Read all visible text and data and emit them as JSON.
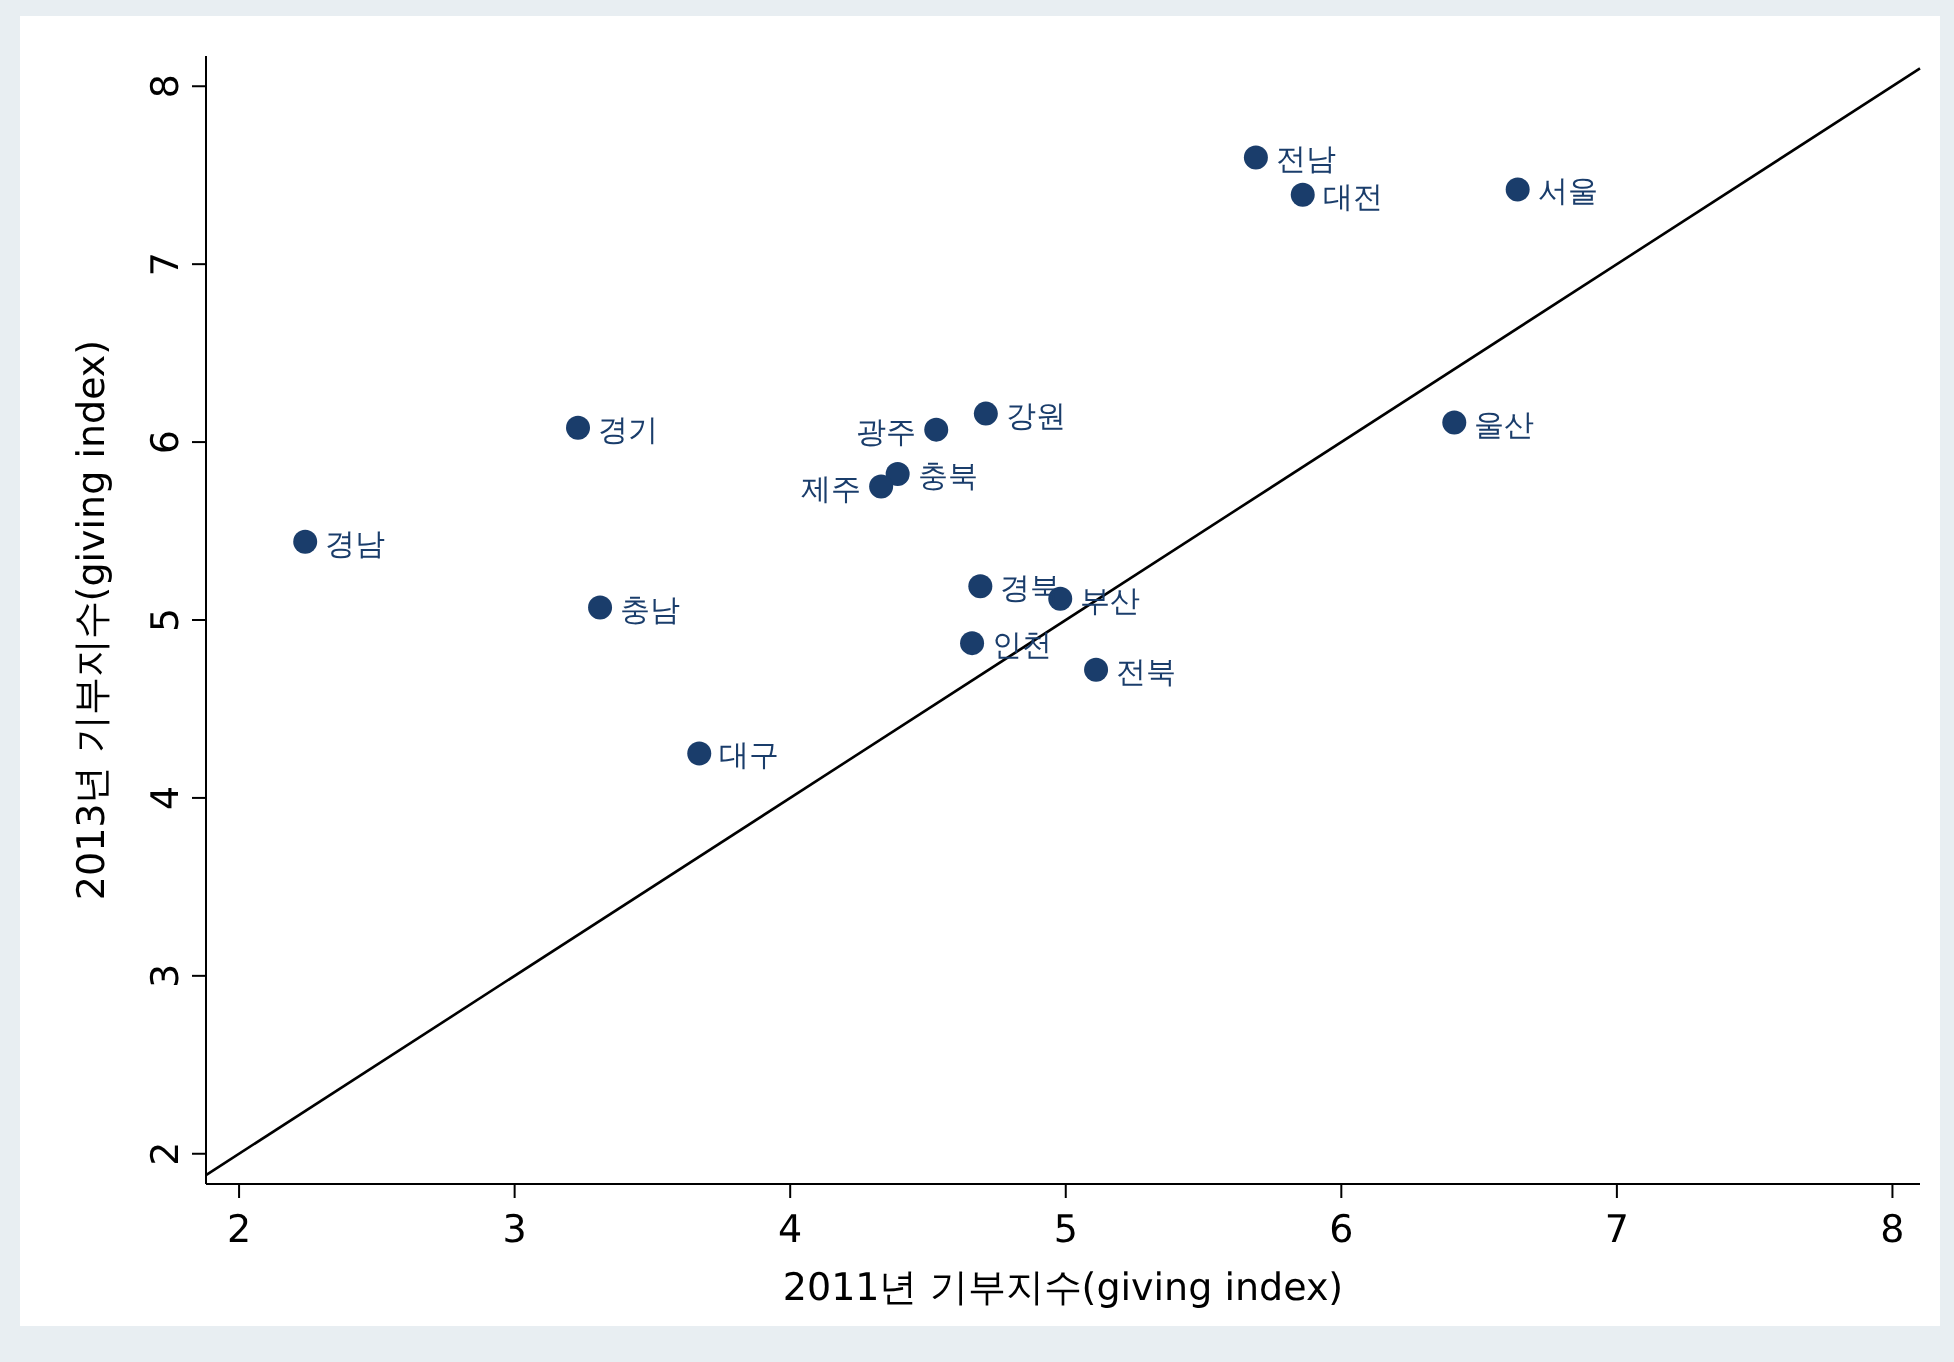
{
  "chart_data": {
    "type": "scatter",
    "xlabel": "2011년 기부지수(giving index)",
    "ylabel": "2013년 기부지수(giving index)",
    "xlim": [
      1.88,
      8.1
    ],
    "ylim": [
      1.83,
      8.17
    ],
    "xticks": [
      2,
      3,
      4,
      5,
      6,
      7,
      8
    ],
    "yticks": [
      2,
      3,
      4,
      5,
      6,
      7,
      8
    ],
    "grid": false,
    "series": [
      {
        "marker": "circle",
        "color": "#1a3d6b",
        "x": [
          5.69,
          5.86,
          6.64,
          6.41,
          4.71,
          4.53,
          4.39,
          4.33,
          3.23,
          2.24,
          3.31,
          4.69,
          4.98,
          4.66,
          5.11,
          3.67
        ],
        "values": [
          7.6,
          7.39,
          7.42,
          6.11,
          6.16,
          6.07,
          5.82,
          5.75,
          6.08,
          5.44,
          5.07,
          5.19,
          5.12,
          4.87,
          4.72,
          4.25
        ]
      },
      {
        "type": "line",
        "color": "#000000",
        "x": [
          1.88,
          8.1
        ],
        "values": [
          1.88,
          8.1
        ]
      }
    ],
    "annotations": [
      {
        "text": "전남",
        "x": 5.69,
        "y": 7.6
      },
      {
        "text": "대전",
        "x": 5.86,
        "y": 7.39
      },
      {
        "text": "서울",
        "x": 6.64,
        "y": 7.42
      },
      {
        "text": "울산",
        "x": 6.41,
        "y": 6.11
      },
      {
        "text": "강원",
        "x": 4.71,
        "y": 6.16
      },
      {
        "text": "광주",
        "x": 4.53,
        "y": 6.07
      },
      {
        "text": "충북",
        "x": 4.39,
        "y": 5.82
      },
      {
        "text": "제주",
        "x": 4.33,
        "y": 5.75
      },
      {
        "text": "경기",
        "x": 3.23,
        "y": 6.08
      },
      {
        "text": "경남",
        "x": 2.24,
        "y": 5.44
      },
      {
        "text": "충남",
        "x": 3.31,
        "y": 5.07
      },
      {
        "text": "경북",
        "x": 4.69,
        "y": 5.19
      },
      {
        "text": "부산",
        "x": 4.98,
        "y": 5.12
      },
      {
        "text": "인천",
        "x": 4.66,
        "y": 4.87
      },
      {
        "text": "전북",
        "x": 5.11,
        "y": 4.72
      },
      {
        "text": "대구",
        "x": 3.67,
        "y": 4.25
      }
    ]
  }
}
